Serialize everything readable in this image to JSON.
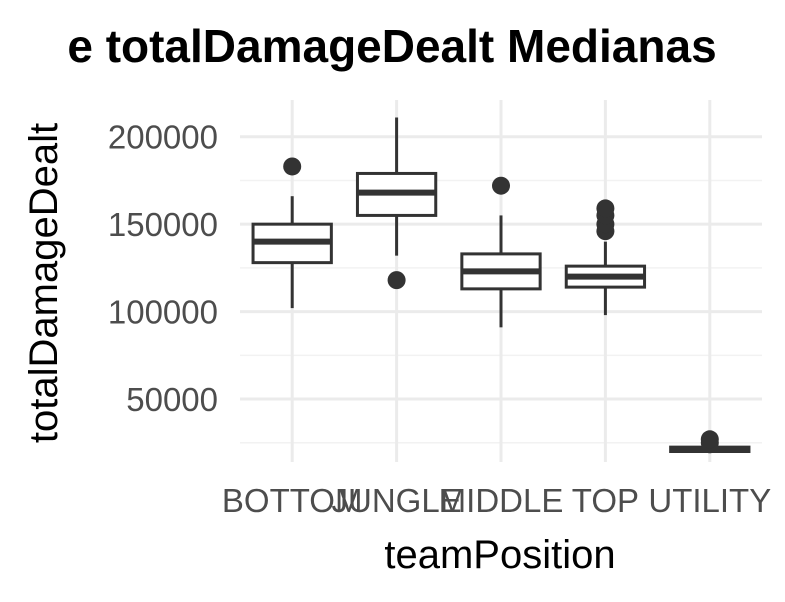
{
  "chart_data": {
    "type": "box",
    "title": "e totalDamageDealt Medianas",
    "xlabel": "teamPosition",
    "ylabel": "totalDamageDealt",
    "categories": [
      "BOTTOM",
      "JUNGLE",
      "MIDDLE",
      "TOP",
      "UTILITY"
    ],
    "y_ticks": [
      {
        "value": 50000,
        "label": "50000"
      },
      {
        "value": 100000,
        "label": "100000"
      },
      {
        "value": 150000,
        "label": "150000"
      },
      {
        "value": 200000,
        "label": "200000"
      }
    ],
    "ylim": [
      14000,
      221000
    ],
    "grid": true,
    "boxes": [
      {
        "category": "BOTTOM",
        "whisker_low": 102000,
        "q1": 128000,
        "median": 140000,
        "q3": 150000,
        "whisker_high": 166000,
        "outliers": [
          183000
        ]
      },
      {
        "category": "JUNGLE",
        "whisker_low": 132000,
        "q1": 155000,
        "median": 168000,
        "q3": 179000,
        "whisker_high": 211000,
        "outliers": [
          118000
        ]
      },
      {
        "category": "MIDDLE",
        "whisker_low": 91000,
        "q1": 113000,
        "median": 123000,
        "q3": 133000,
        "whisker_high": 155000,
        "outliers": [
          172000
        ]
      },
      {
        "category": "TOP",
        "whisker_low": 98000,
        "q1": 114000,
        "median": 120000,
        "q3": 126000,
        "whisker_high": 140000,
        "outliers": [
          146000,
          150000,
          155000,
          159000
        ]
      },
      {
        "category": "UTILITY",
        "whisker_low": 19000,
        "q1": 20000,
        "median": 21000,
        "q3": 22500,
        "whisker_high": 23000,
        "outliers": [
          25000,
          27000
        ]
      }
    ]
  }
}
